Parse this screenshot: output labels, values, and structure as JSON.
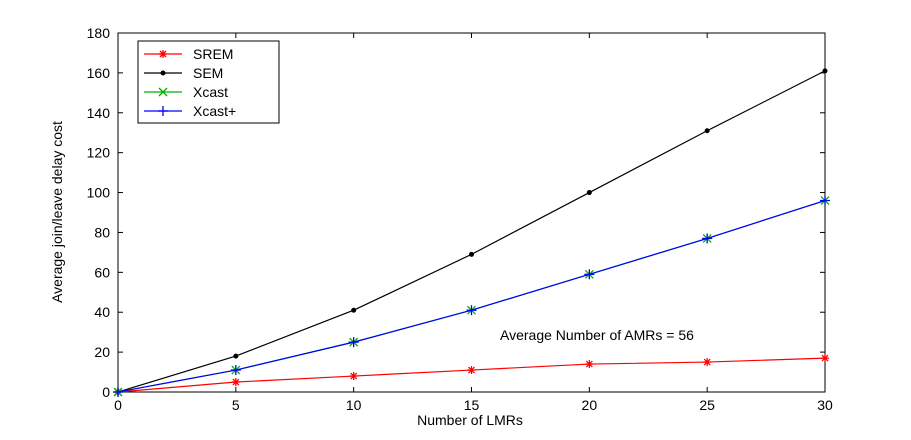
{
  "chart_data": {
    "type": "line",
    "xlabel": "Number of LMRs",
    "ylabel": "Average join/leave delay cost",
    "xlim": [
      0,
      30
    ],
    "ylim": [
      0,
      180
    ],
    "xticks": [
      0,
      5,
      10,
      15,
      20,
      25,
      30
    ],
    "yticks": [
      0,
      20,
      40,
      60,
      80,
      100,
      120,
      140,
      160,
      180
    ],
    "grid": false,
    "legend_position": "top-left",
    "annotation": "Average Number of AMRs = 56",
    "x": [
      0,
      5,
      10,
      15,
      20,
      25,
      30
    ],
    "series": [
      {
        "name": "SREM",
        "color": "#ff0000",
        "marker": "asterisk",
        "values": [
          0,
          5,
          8,
          11,
          14,
          15,
          17
        ]
      },
      {
        "name": "SEM",
        "color": "#000000",
        "marker": "dot",
        "values": [
          0,
          18,
          41,
          69,
          100,
          131,
          161
        ]
      },
      {
        "name": "Xcast",
        "color": "#00b000",
        "marker": "x",
        "values": [
          0,
          11,
          25,
          41,
          59,
          77,
          96
        ]
      },
      {
        "name": "Xcast+",
        "color": "#0000ff",
        "marker": "plus",
        "values": [
          0,
          11,
          25,
          41,
          59,
          77,
          96
        ]
      }
    ]
  }
}
